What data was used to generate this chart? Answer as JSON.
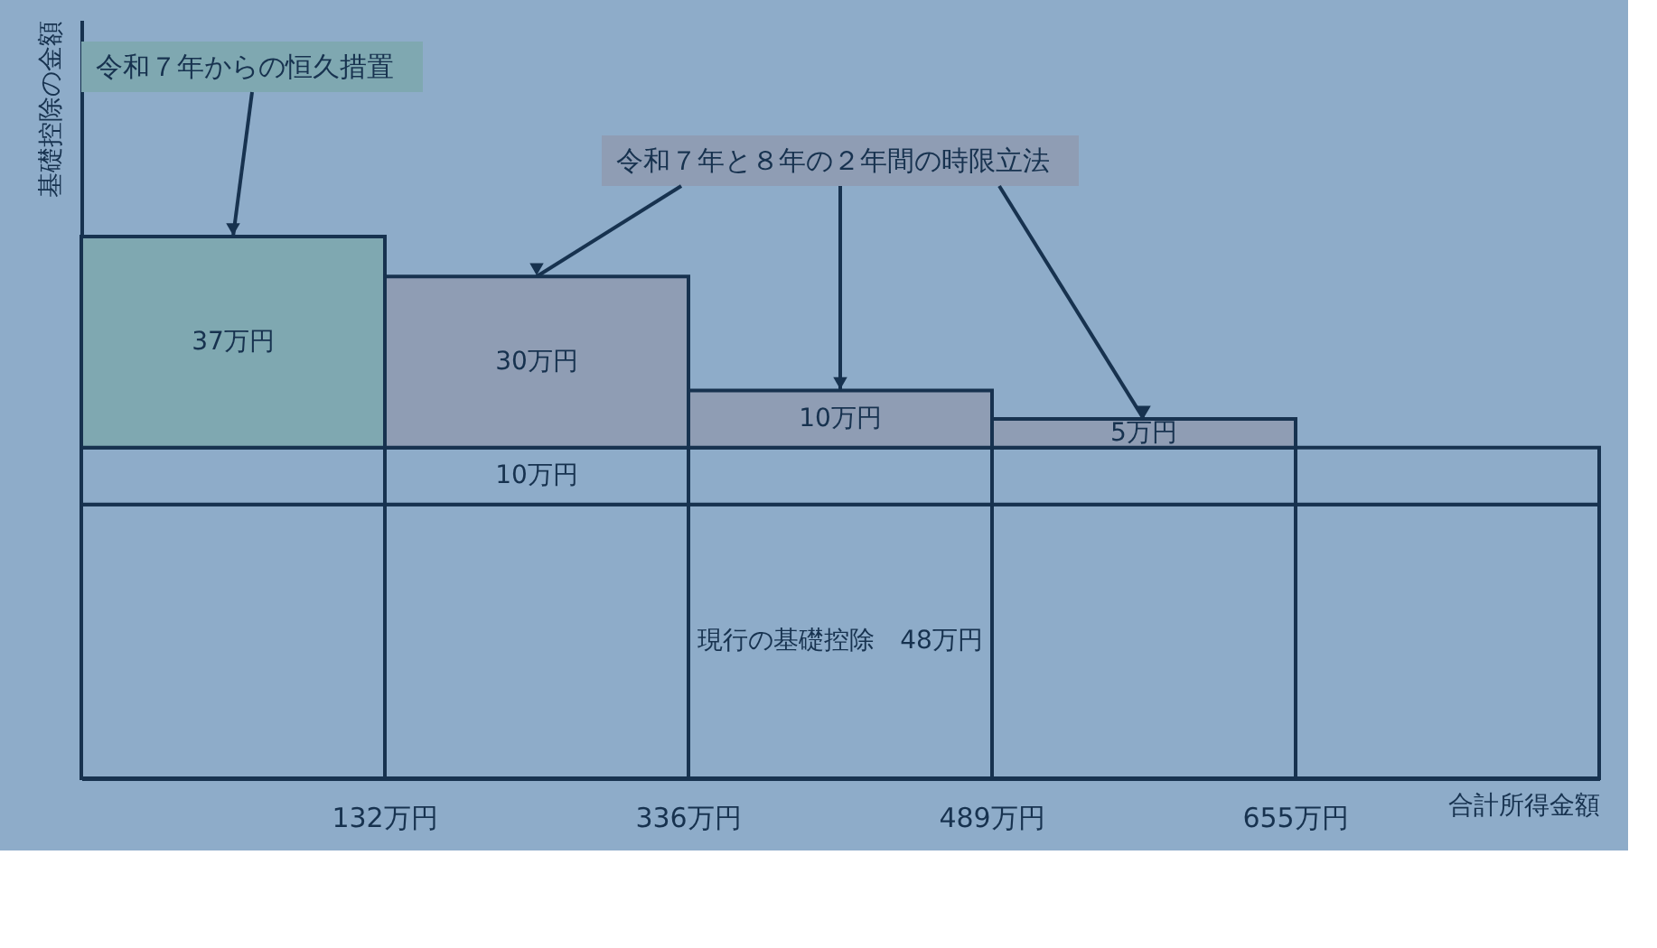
{
  "chart_data": {
    "type": "bar",
    "stacked": true,
    "xlabel": "合計所得金額",
    "ylabel": "基礎控除の金額",
    "categories": [
      null,
      null,
      null,
      null,
      null
    ],
    "series": [
      {
        "color": "#8eacc9",
        "values": [
          48,
          48,
          48,
          48,
          48
        ],
        "value_labels": [
          null,
          null,
          "現行の基礎控除　48万円",
          null,
          null
        ]
      },
      {
        "color": "#8eacc9",
        "values": [
          10,
          10,
          10,
          10,
          10
        ],
        "value_labels": [
          null,
          "10万円",
          null,
          null,
          null
        ]
      },
      {
        "name": "令和７年からの恒久措置",
        "color": "#7fa8b1",
        "values": [
          37,
          null,
          null,
          null,
          null
        ],
        "value_labels": [
          "37万円",
          null,
          null,
          null,
          null
        ]
      },
      {
        "name": "令和７年と８年の２年間の時限立法",
        "color": "#8f9db4",
        "values": [
          null,
          30,
          10,
          5,
          null
        ],
        "value_labels": [
          null,
          "30万円",
          "10万円",
          "5万円",
          null
        ]
      }
    ],
    "annotations": [
      "132万円",
      "336万円",
      "489万円",
      "655万円"
    ],
    "tick_labels": false,
    "legend": false,
    "grid": false
  }
}
